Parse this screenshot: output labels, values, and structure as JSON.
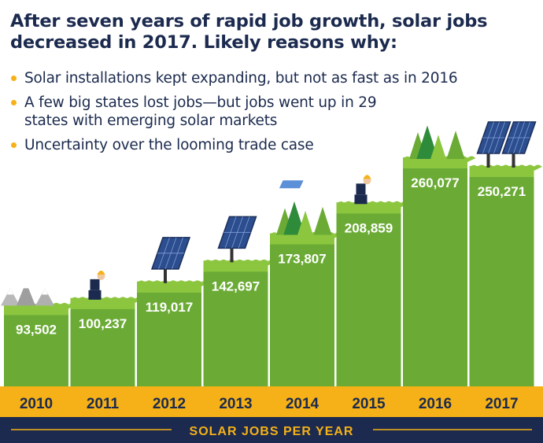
{
  "title": "After seven years of rapid job growth, solar jobs decreased in 2017. Likely reasons why:",
  "bullets": [
    "Solar installations kept expanding, but not as fast as in 2016",
    "A few big states lost jobs—but jobs went up in 29 states with emerging solar markets",
    "Uncertainty over the looming trade case"
  ],
  "colors": {
    "navy": "#1b2a4e",
    "gold": "#f5b117",
    "green_light": "#8cc63f",
    "green_mid": "#6bab35",
    "green_dark": "#2e8b3a",
    "panel_blue": "#2c4d8e"
  },
  "chart_data": {
    "type": "bar",
    "categories": [
      "2010",
      "2011",
      "2012",
      "2013",
      "2014",
      "2015",
      "2016",
      "2017"
    ],
    "values": [
      93502,
      100237,
      119017,
      142697,
      173807,
      208859,
      260077,
      250271
    ],
    "value_labels": [
      "93,502",
      "100,237",
      "119,017",
      "142,697",
      "173,807",
      "208,859",
      "260,077",
      "250,271"
    ],
    "xlabel": "SOLAR JOBS PER YEAR",
    "decorations": [
      "mountains",
      "worker",
      "solar-panel",
      "solar-panel",
      "trees",
      "worker",
      "trees",
      "solar-panels"
    ]
  }
}
